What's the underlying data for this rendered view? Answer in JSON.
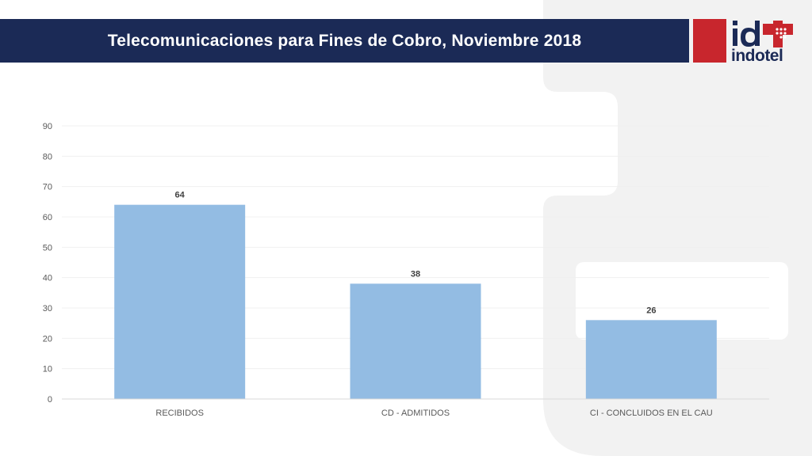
{
  "header": {
    "title": "Telecomunicaciones para Fines de Cobro, Noviembre 2018",
    "logo_text": "indotel",
    "logo_mark": "id"
  },
  "colors": {
    "title_bar": "#1b2a56",
    "logo_red": "#c8262d",
    "bar": "#8db8e2",
    "background_panel": "#f2f2f2"
  },
  "chart_data": {
    "type": "bar",
    "title": "",
    "xlabel": "",
    "ylabel": "",
    "categories": [
      "RECIBIDOS",
      "CD - ADMITIDOS",
      "CI - CONCLUIDOS EN EL CAU"
    ],
    "values": [
      64,
      38,
      26
    ],
    "data_labels": [
      "64",
      "38",
      "26"
    ],
    "ylim": [
      0,
      90
    ],
    "yticks": [
      0,
      10,
      20,
      30,
      40,
      50,
      60,
      70,
      80,
      90
    ],
    "grid": true,
    "legend": "none"
  }
}
